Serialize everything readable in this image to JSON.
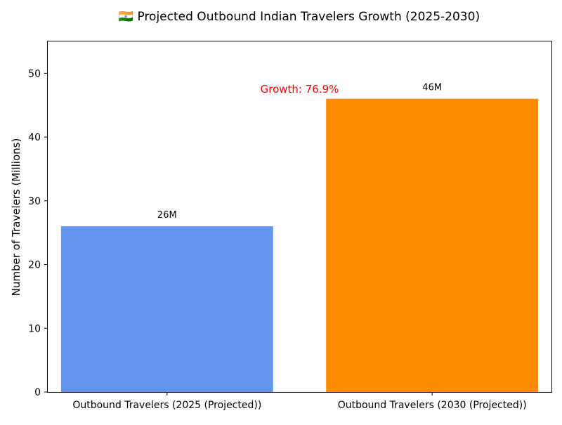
{
  "chart_data": {
    "type": "bar",
    "title": "🇮🇳 Projected Outbound Indian Travelers Growth (2025-2030)",
    "xlabel": "",
    "ylabel": "Number of Travelers (Millions)",
    "categories": [
      "Outbound Travelers (2025 (Projected))",
      "Outbound Travelers (2030 (Projected))"
    ],
    "values": [
      26,
      46
    ],
    "value_labels": [
      "26M",
      "46M"
    ],
    "bar_colors": [
      "#6495ED",
      "#FF8C00"
    ],
    "ylim": [
      0,
      55
    ],
    "yticks": [
      0,
      10,
      20,
      30,
      40,
      50
    ],
    "grid": false,
    "annotation": {
      "text": "Growth: 76.9%",
      "color": "#FF0000",
      "x_category_position": 0.5,
      "y": 47.5
    }
  }
}
